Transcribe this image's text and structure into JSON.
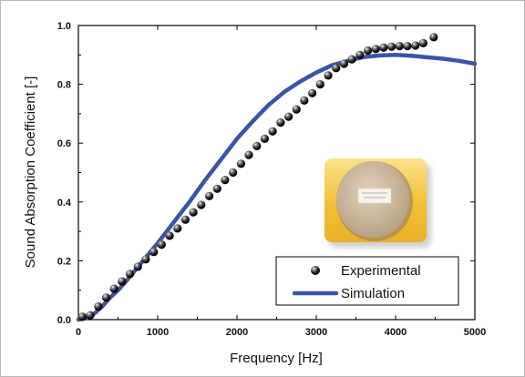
{
  "chart_data": {
    "type": "line",
    "title": "",
    "xlabel": "Frequency [Hz]",
    "ylabel": "Sound Absorption Coefficient  [-]",
    "xlim": [
      0,
      5000
    ],
    "ylim": [
      0,
      1.0
    ],
    "xticks": [
      0,
      1000,
      2000,
      3000,
      4000,
      5000
    ],
    "xtick_labels": [
      "0",
      "1000",
      "2000",
      "3000",
      "4000",
      "5000"
    ],
    "yticks": [
      0.0,
      0.2,
      0.4,
      0.6,
      0.8,
      1.0
    ],
    "ytick_labels": [
      "0.0",
      "0.2",
      "0.4",
      "0.6",
      "0.8",
      "1.0"
    ],
    "grid": false,
    "legend_position": "bottom-right",
    "series": [
      {
        "name": "Experimental",
        "style": "markers",
        "color": "#111111",
        "x": [
          50,
          150,
          250,
          350,
          450,
          550,
          650,
          750,
          850,
          950,
          1050,
          1150,
          1250,
          1350,
          1450,
          1550,
          1650,
          1750,
          1850,
          1950,
          2050,
          2150,
          2250,
          2350,
          2450,
          2550,
          2650,
          2750,
          2850,
          2950,
          3050,
          3150,
          3250,
          3350,
          3450,
          3550,
          3650,
          3750,
          3850,
          3950,
          4050,
          4150,
          4250,
          4350,
          4480
        ],
        "y": [
          0.01,
          0.015,
          0.045,
          0.075,
          0.105,
          0.13,
          0.155,
          0.18,
          0.205,
          0.23,
          0.255,
          0.285,
          0.31,
          0.34,
          0.365,
          0.39,
          0.42,
          0.445,
          0.475,
          0.5,
          0.53,
          0.56,
          0.59,
          0.615,
          0.64,
          0.67,
          0.69,
          0.715,
          0.745,
          0.77,
          0.8,
          0.83,
          0.855,
          0.87,
          0.885,
          0.9,
          0.915,
          0.92,
          0.925,
          0.928,
          0.93,
          0.93,
          0.932,
          0.94,
          0.96
        ]
      },
      {
        "name": "Simulation",
        "style": "line",
        "color": "#3a55a4",
        "x": [
          0,
          100,
          200,
          300,
          400,
          500,
          600,
          800,
          1000,
          1200,
          1400,
          1600,
          1800,
          2000,
          2200,
          2400,
          2600,
          2800,
          3000,
          3200,
          3400,
          3600,
          3800,
          4000,
          4200,
          4400,
          4600,
          4800,
          5000
        ],
        "y": [
          0.0,
          0.005,
          0.02,
          0.045,
          0.075,
          0.1,
          0.13,
          0.195,
          0.26,
          0.33,
          0.4,
          0.475,
          0.545,
          0.615,
          0.675,
          0.73,
          0.775,
          0.81,
          0.84,
          0.865,
          0.88,
          0.893,
          0.898,
          0.9,
          0.897,
          0.892,
          0.887,
          0.88,
          0.87
        ]
      }
    ],
    "inset_image": {
      "description_label": "sample-photo",
      "colors": {
        "frame": "#f3c23b",
        "disc": "#cdb9a0",
        "label_bg": "#f7f3ea"
      }
    }
  }
}
